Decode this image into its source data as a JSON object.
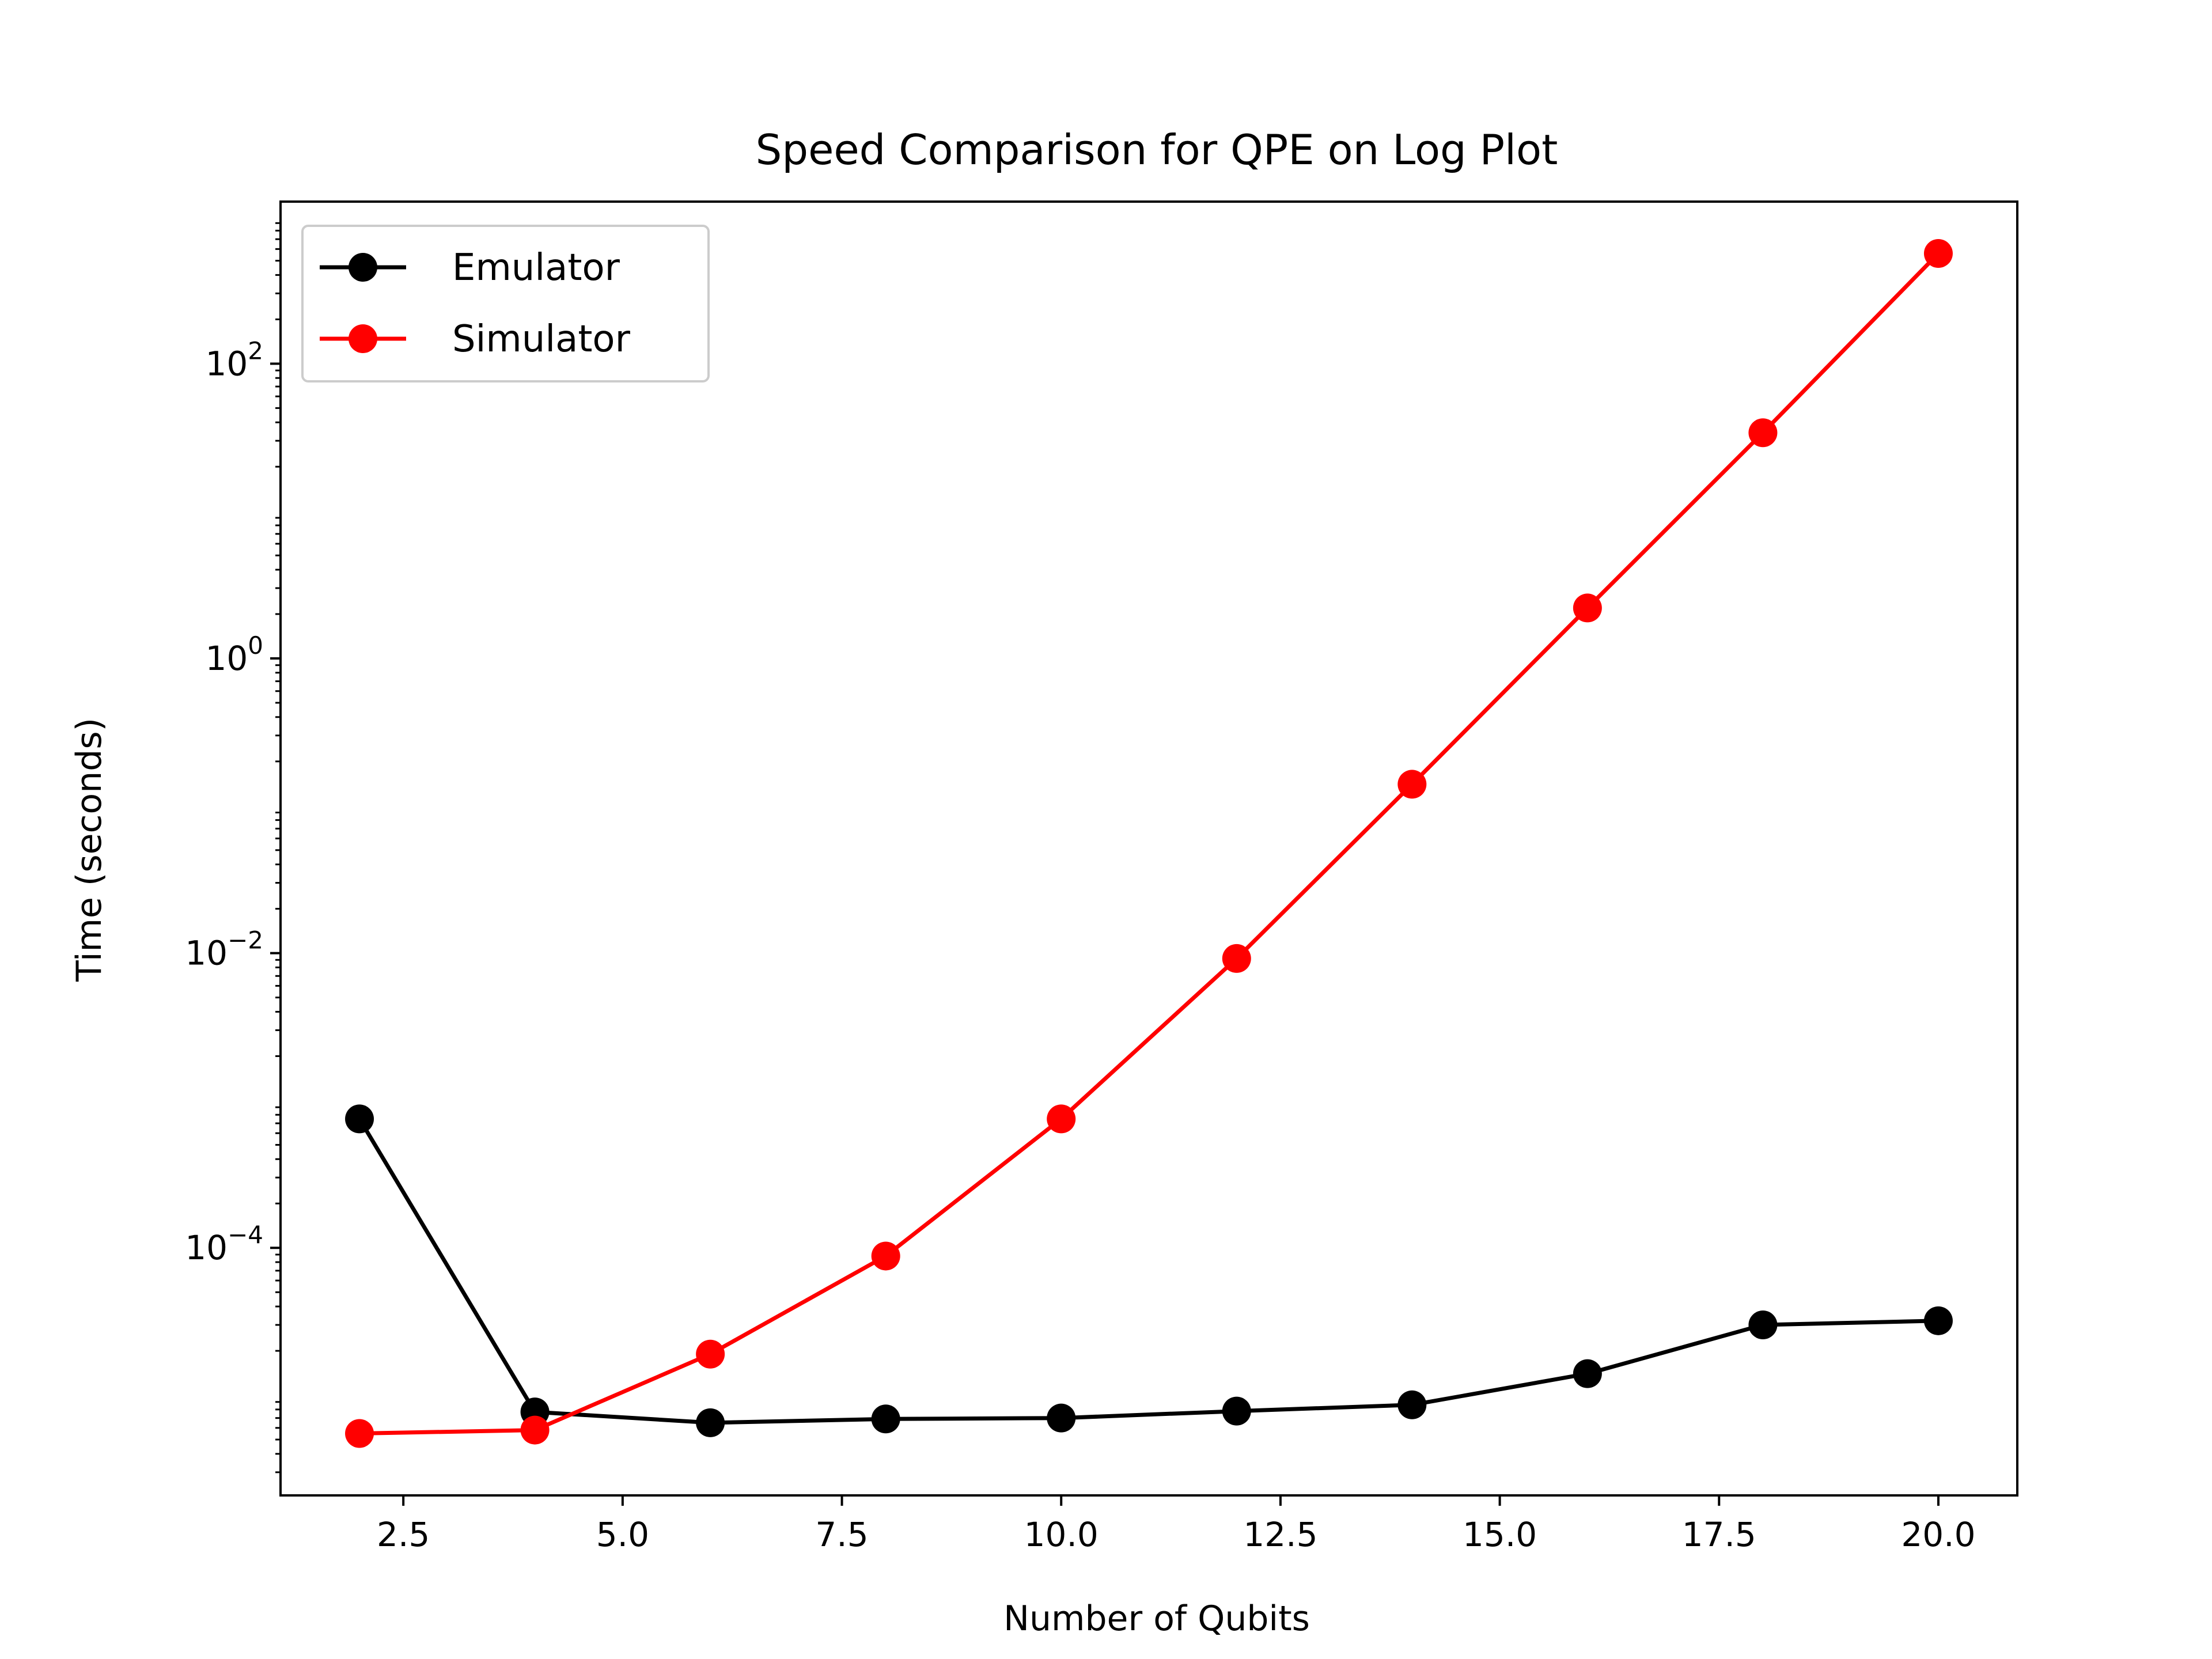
{
  "chart_data": {
    "type": "line",
    "title": "Speed Comparison for QPE on Log Plot",
    "xlabel": "Number of Qubits",
    "ylabel": "Time (seconds)",
    "y_scale": "log",
    "xlim": [
      1.1,
      20.9
    ],
    "ylim_log10": [
      -5.68,
      3.1
    ],
    "x_ticks": [
      2.5,
      5.0,
      7.5,
      10.0,
      12.5,
      15.0,
      17.5,
      20.0
    ],
    "x_tick_labels": [
      "2.5",
      "5.0",
      "7.5",
      "10.0",
      "12.5",
      "15.0",
      "17.5",
      "20.0"
    ],
    "y_ticks_log10": [
      -4,
      -2,
      0,
      2
    ],
    "y_tick_base": "10",
    "y_tick_exponents": [
      "−4",
      "−2",
      "0",
      "2"
    ],
    "grid": false,
    "legend_position": "top-left",
    "x": [
      2,
      4,
      6,
      8,
      10,
      12,
      14,
      16,
      18,
      20
    ],
    "series": [
      {
        "name": "Emulator",
        "color": "#000000",
        "marker": "circle",
        "values": [
          0.00075,
          7.7e-06,
          6.5e-06,
          6.9e-06,
          7e-06,
          7.8e-06,
          8.6e-06,
          1.4e-05,
          3e-05,
          3.2e-05
        ]
      },
      {
        "name": "Simulator",
        "color": "#ff0000",
        "marker": "circle",
        "values": [
          5.5e-06,
          5.8e-06,
          1.9e-05,
          8.8e-05,
          0.00075,
          0.0092,
          0.14,
          2.2,
          34,
          560
        ]
      }
    ]
  }
}
